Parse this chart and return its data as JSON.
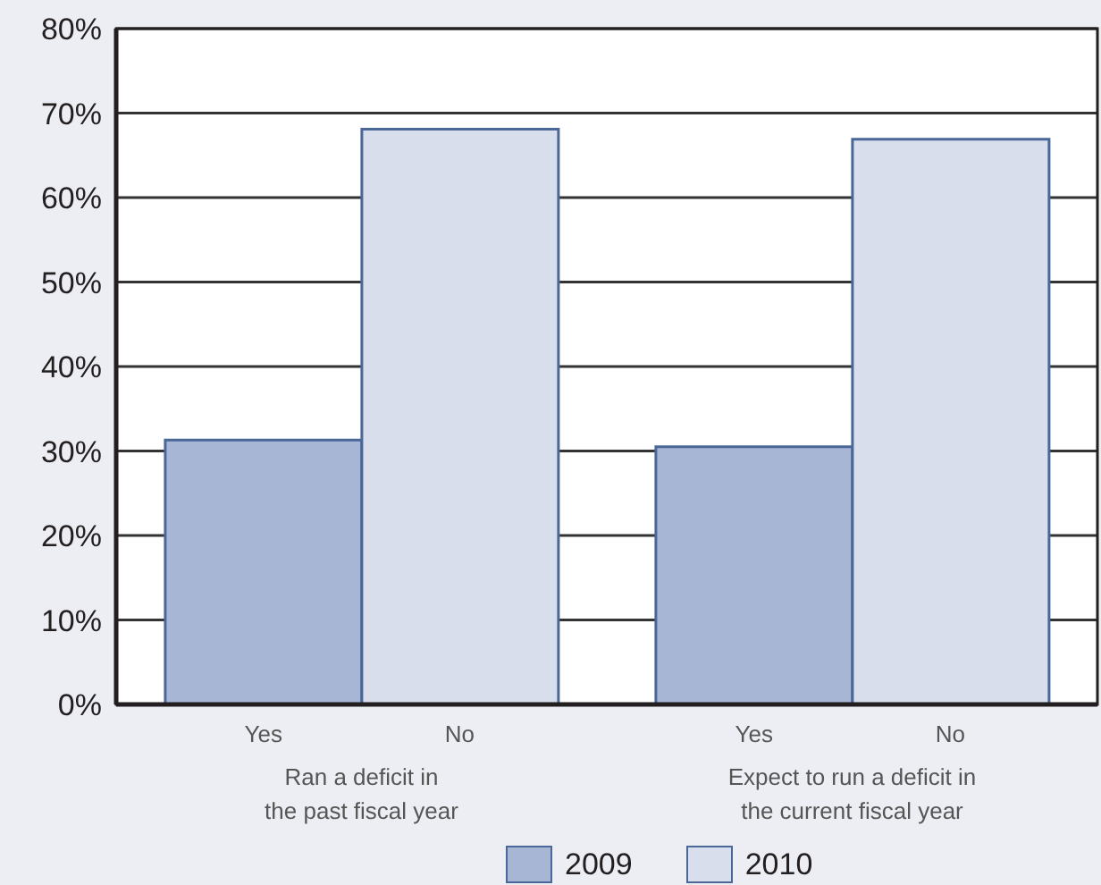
{
  "chart_data": {
    "type": "bar",
    "categories": [
      "Ran a deficit in\nthe past fiscal year",
      "Expect to run a deficit in\nthe current fiscal year"
    ],
    "series": [
      {
        "name": "2009",
        "color": "#a8b6d6",
        "values": [
          31.3,
          30.5
        ]
      },
      {
        "name": "2010",
        "color": "#d8deeb",
        "values": [
          68.1,
          66.9
        ]
      }
    ],
    "annotations": [
      "Yes",
      "No",
      "Yes",
      "No"
    ],
    "ylim": [
      0,
      80
    ],
    "yticks": [
      {
        "value": 0,
        "label": "0%"
      },
      {
        "value": 10,
        "label": "10%"
      },
      {
        "value": 20,
        "label": "20%"
      },
      {
        "value": 30,
        "label": "30%"
      },
      {
        "value": 40,
        "label": "40%"
      },
      {
        "value": 50,
        "label": "50%"
      },
      {
        "value": 60,
        "label": "60%"
      },
      {
        "value": 70,
        "label": "70%"
      },
      {
        "value": 80,
        "label": "80%"
      }
    ],
    "grid": "y",
    "legend": "bottom"
  }
}
